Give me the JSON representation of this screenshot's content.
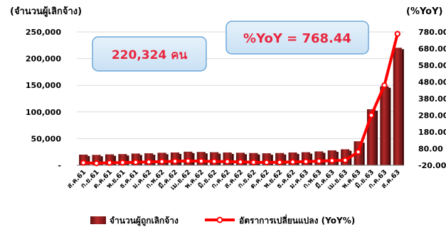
{
  "chart_data": {
    "type": "bar+line",
    "y_left_label": "(จำนวนผู้เลิกจ้าง)",
    "y_right_label": "(%YoY)",
    "y_left_ticks": [
      "250,000",
      "200,000",
      "150,000",
      "100,000",
      "50,000",
      "-"
    ],
    "y_right_ticks": [
      "780.00",
      "680.00",
      "580.00",
      "480.00",
      "380.00",
      "280.00",
      "180.00",
      "80.00",
      "-20.00"
    ],
    "left_ylim": [
      0,
      250000
    ],
    "right_ylim": [
      -20,
      780
    ],
    "categories": [
      "ส.ค.61",
      "ก.ย.61",
      "ต.ค.61",
      "พ.ย.61",
      "ธ.ค.61",
      "ม.ค.62",
      "ก.พ.62",
      "มี.ค.62",
      "เม.ย.62",
      "พ.ค.62",
      "มิ.ย.62",
      "ก.ค.62",
      "ส.ค.62",
      "ก.ย.62",
      "ต.ค.62",
      "พ.ย.62",
      "ธ.ค.62",
      "ม.ค.63",
      "ก.พ.63",
      "มี.ค.63",
      "เม.ย.63",
      "พ.ค.63",
      "มิ.ย.63",
      "ก.ค.63",
      "ส.ค.63"
    ],
    "series": [
      {
        "name": "จำนวนผู้ถูกเลิกจ้าง",
        "type": "bar",
        "axis": "left",
        "color": "#8b1a1a",
        "values": [
          20000,
          19500,
          20500,
          21000,
          22000,
          22500,
          23500,
          24000,
          25500,
          25000,
          24500,
          24000,
          23500,
          23000,
          22500,
          23000,
          24000,
          24500,
          26000,
          28000,
          30000,
          45000,
          105000,
          148000,
          220324
        ]
      },
      {
        "name": "อัตราการเปลี่ยนแปลง (YoY%)",
        "type": "line",
        "axis": "right",
        "color": "#ff0000",
        "values": [
          -5,
          -8,
          -5,
          -4,
          -2,
          0,
          2,
          4,
          6,
          5,
          3,
          2,
          0,
          -2,
          -3,
          -2,
          0,
          2,
          5,
          8,
          10,
          60,
          280,
          460,
          768.44
        ]
      }
    ],
    "annotations": {
      "count": "220,324 คน",
      "yoy": "%YoY = 768.44"
    },
    "legend_position": "bottom"
  }
}
